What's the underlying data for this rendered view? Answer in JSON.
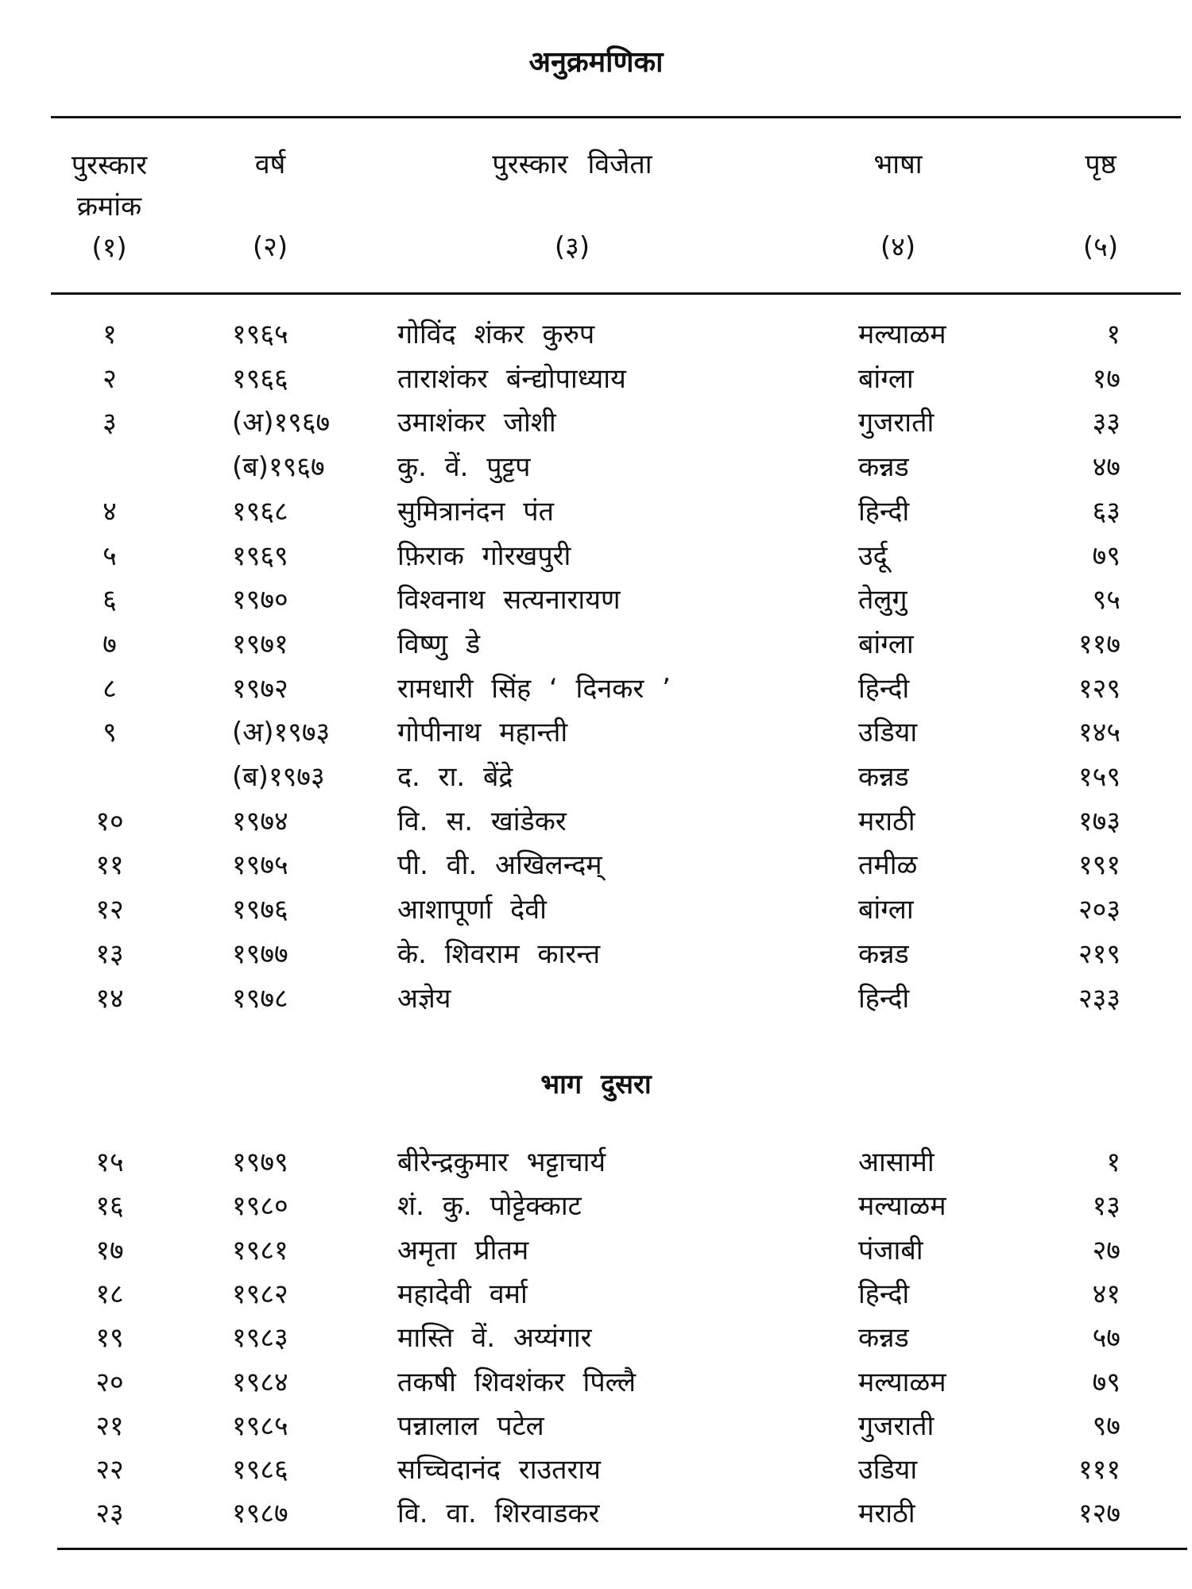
{
  "title": "अनुक्रमणिका",
  "headers": [
    {
      "label": "पुरस्कार क्रमांक",
      "num": "(१)"
    },
    {
      "label": "वर्ष",
      "num": "(२)"
    },
    {
      "label": "पुरस्कार विजेता",
      "num": "(३)"
    },
    {
      "label": "भाषा",
      "num": "(४)"
    },
    {
      "label": "पृष्ठ",
      "num": "(५)"
    }
  ],
  "part1": [
    {
      "no": "१",
      "year": "१९६५",
      "name": "गोविंद शंकर कुरुप",
      "lang": "मल्याळम",
      "page": "१"
    },
    {
      "no": "२",
      "year": "१९६६",
      "name": "ताराशंकर बंन्द्योपाध्याय",
      "lang": "बांग्ला",
      "page": "१७"
    },
    {
      "no": "३",
      "year": "(अ)१९६७",
      "name": "उमाशंकर जोशी",
      "lang": "गुजराती",
      "page": "३३"
    },
    {
      "no": "",
      "year": "(ब)१९६७",
      "name": "कु. वें. पुट्टप",
      "lang": "कन्नड",
      "page": "४७"
    },
    {
      "no": "४",
      "year": "१९६८",
      "name": "सुमित्रानंदन पंत",
      "lang": "हिन्दी",
      "page": "६३"
    },
    {
      "no": "५",
      "year": "१९६९",
      "name": "फ़िराक गोरखपुरी",
      "lang": "उर्दू",
      "page": "७९"
    },
    {
      "no": "६",
      "year": "१९७०",
      "name": "विश्वनाथ सत्यनारायण",
      "lang": "तेलुगु",
      "page": "९५"
    },
    {
      "no": "७",
      "year": "१९७१",
      "name": "विष्णु डे",
      "lang": "बांग्ला",
      "page": "११७"
    },
    {
      "no": "८",
      "year": "१९७२",
      "name": "रामधारी सिंह ‘ दिनकर ’",
      "lang": "हिन्दी",
      "page": "१२९"
    },
    {
      "no": "९",
      "year": "(अ)१९७३",
      "name": "गोपीनाथ महान्ती",
      "lang": "उडिया",
      "page": "१४५"
    },
    {
      "no": "",
      "year": "(ब)१९७३",
      "name": "द. रा. बेंद्रे",
      "lang": "कन्नड",
      "page": "१५९"
    },
    {
      "no": "१०",
      "year": "१९७४",
      "name": "वि. स. खांडेकर",
      "lang": "मराठी",
      "page": "१७३"
    },
    {
      "no": "११",
      "year": "१९७५",
      "name": "पी. वी. अखिलन्दम्",
      "lang": "तमीळ",
      "page": "१९१"
    },
    {
      "no": "१२",
      "year": "१९७६",
      "name": "आशापूर्णा देवी",
      "lang": "बांग्ला",
      "page": "२०३"
    },
    {
      "no": "१३",
      "year": "१९७७",
      "name": "के. शिवराम कारन्त",
      "lang": "कन्नड",
      "page": "२१९"
    },
    {
      "no": "१४",
      "year": "१९७८",
      "name": "अज्ञेय",
      "lang": "हिन्दी",
      "page": "२३३"
    }
  ],
  "part2_title": "भाग दुसरा",
  "part2": [
    {
      "no": "१५",
      "year": "१९७९",
      "name": "बीरेन्द्रकुमार भट्टाचार्य",
      "lang": "आसामी",
      "page": "१"
    },
    {
      "no": "१६",
      "year": "१९८०",
      "name": "शं. कु. पोट्टेक्काट",
      "lang": "मल्याळम",
      "page": "१३"
    },
    {
      "no": "१७",
      "year": "१९८१",
      "name": "अमृता प्रीतम",
      "lang": "पंजाबी",
      "page": "२७"
    },
    {
      "no": "१८",
      "year": "१९८२",
      "name": "महादेवी वर्मा",
      "lang": "हिन्दी",
      "page": "४१"
    },
    {
      "no": "१९",
      "year": "१९८३",
      "name": "मास्ति वें. अय्यंगार",
      "lang": "कन्नड",
      "page": "५७"
    },
    {
      "no": "२०",
      "year": "१९८४",
      "name": "तकषी शिवशंकर पिल्लै",
      "lang": "मल्याळम",
      "page": "७९"
    },
    {
      "no": "२१",
      "year": "१९८५",
      "name": "पन्नालाल पटेल",
      "lang": "गुजराती",
      "page": "९७"
    },
    {
      "no": "२२",
      "year": "१९८६",
      "name": "सच्चिदानंद राउतराय",
      "lang": "उडिया",
      "page": "१११"
    },
    {
      "no": "२३",
      "year": "१९८७",
      "name": "वि. वा. शिरवाडकर",
      "lang": "मराठी",
      "page": "१२७"
    }
  ]
}
